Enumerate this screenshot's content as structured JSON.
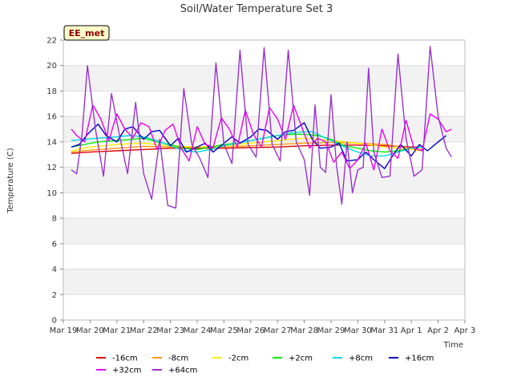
{
  "chart_data": {
    "type": "line",
    "title": "Soil/Water Temperature Set 3",
    "xlabel": "Time",
    "ylabel": "Temperature (C)",
    "ylim": [
      0,
      22
    ],
    "yticks": [
      0,
      2,
      4,
      6,
      8,
      10,
      12,
      14,
      16,
      18,
      20,
      22
    ],
    "xlim": [
      0,
      15
    ],
    "xticks": [
      {
        "value": 0,
        "label": "Mar 19"
      },
      {
        "value": 1,
        "label": "Mar 20"
      },
      {
        "value": 2,
        "label": "Mar 21"
      },
      {
        "value": 3,
        "label": "Mar 22"
      },
      {
        "value": 4,
        "label": "Mar 23"
      },
      {
        "value": 5,
        "label": "Mar 24"
      },
      {
        "value": 6,
        "label": "Mar 25"
      },
      {
        "value": 7,
        "label": "Mar 26"
      },
      {
        "value": 8,
        "label": "Mar 27"
      },
      {
        "value": 9,
        "label": "Mar 28"
      },
      {
        "value": 10,
        "label": "Mar 29"
      },
      {
        "value": 11,
        "label": "Mar 30"
      },
      {
        "value": 12,
        "label": "Mar 31"
      },
      {
        "value": 13,
        "label": "Apr 1"
      },
      {
        "value": 14,
        "label": "Apr 2"
      },
      {
        "value": 15,
        "label": "Apr 3"
      }
    ],
    "grid": true,
    "legend_position": "bottom",
    "site_label": "EE_met",
    "series": [
      {
        "name": "-16cm",
        "color": "#dd0000",
        "x": [
          0.3,
          1,
          2,
          3,
          4,
          5,
          6,
          7,
          8,
          9,
          10,
          11,
          12,
          13,
          13.4
        ],
        "y": [
          13.1,
          13.2,
          13.3,
          13.4,
          13.5,
          13.5,
          13.5,
          13.55,
          13.6,
          13.7,
          13.75,
          13.75,
          13.7,
          13.6,
          13.6
        ]
      },
      {
        "name": "-8cm",
        "color": "#ff9900",
        "x": [
          0.3,
          1,
          2,
          3,
          4,
          5,
          6,
          7,
          8,
          9,
          10,
          11,
          12,
          13,
          13.4
        ],
        "y": [
          13.2,
          13.35,
          13.5,
          13.65,
          13.6,
          13.6,
          13.6,
          13.7,
          13.8,
          13.9,
          13.95,
          13.9,
          13.8,
          13.5,
          13.4
        ]
      },
      {
        "name": "-2cm",
        "color": "#ffee00",
        "x": [
          0.3,
          1,
          2,
          3,
          4,
          5,
          6,
          7,
          8,
          9,
          10,
          11,
          12,
          13,
          13.4
        ],
        "y": [
          13.3,
          13.6,
          13.8,
          13.9,
          13.7,
          13.6,
          13.7,
          13.9,
          14.1,
          14.3,
          14.1,
          13.9,
          13.6,
          13.4,
          13.3
        ]
      },
      {
        "name": "+2cm",
        "color": "#00ee00",
        "x": [
          0.3,
          0.8,
          1.3,
          2,
          2.6,
          3,
          3.5,
          4,
          4.5,
          5,
          5.5,
          6,
          6.5,
          7,
          7.5,
          8,
          8.5,
          9,
          9.5,
          10,
          10.5,
          11,
          11.5,
          12,
          12.5,
          13,
          13.4
        ],
        "y": [
          13.6,
          13.8,
          14.0,
          14.1,
          14.2,
          14.3,
          14.0,
          13.8,
          13.5,
          13.4,
          13.6,
          13.8,
          13.9,
          14.1,
          14.3,
          14.5,
          14.6,
          14.6,
          14.5,
          14.2,
          13.7,
          13.5,
          13.3,
          13.2,
          13.3,
          13.5,
          13.6
        ]
      },
      {
        "name": "+8cm",
        "color": "#00dddd",
        "x": [
          0.3,
          0.8,
          1.3,
          2,
          2.5,
          3,
          3.5,
          4,
          4.5,
          5,
          5.5,
          6,
          6.5,
          7,
          7.5,
          8,
          8.5,
          9,
          9.3,
          9.7,
          10,
          10.5,
          11,
          11.5,
          12,
          12.5,
          13,
          13.4
        ],
        "y": [
          14.1,
          14.2,
          14.3,
          14.4,
          14.5,
          14.4,
          14.1,
          13.7,
          13.3,
          13.2,
          13.4,
          13.7,
          13.9,
          14.1,
          14.3,
          14.5,
          14.7,
          14.8,
          14.8,
          14.4,
          14.1,
          13.6,
          13.2,
          12.9,
          12.9,
          13.2,
          13.5,
          13.6
        ]
      },
      {
        "name": "+16cm",
        "color": "#0000cc",
        "x": [
          0.3,
          0.6,
          0.9,
          1.3,
          1.6,
          2,
          2.3,
          2.6,
          3,
          3.3,
          3.6,
          4,
          4.3,
          4.6,
          5,
          5.3,
          5.6,
          6,
          6.3,
          6.6,
          7,
          7.3,
          7.6,
          8,
          8.3,
          8.6,
          9,
          9.3,
          9.6,
          10,
          10.3,
          10.6,
          11,
          11.3,
          11.6,
          12,
          12.3,
          12.6,
          13,
          13.3,
          13.6,
          14,
          14.3
        ],
        "y": [
          13.6,
          13.8,
          14.6,
          15.4,
          14.5,
          14.0,
          15.0,
          15.2,
          14.2,
          14.8,
          14.9,
          13.7,
          14.3,
          13.2,
          13.6,
          13.9,
          13.2,
          13.9,
          14.4,
          13.9,
          14.4,
          15.0,
          14.9,
          14.2,
          14.8,
          14.9,
          15.5,
          14.2,
          13.5,
          13.6,
          13.9,
          12.5,
          12.6,
          13.2,
          12.6,
          11.9,
          12.9,
          13.8,
          12.9,
          13.8,
          13.3,
          14.0,
          14.5
        ]
      },
      {
        "name": "+32cm",
        "color": "#ee00ee",
        "x": [
          0.3,
          0.5,
          0.8,
          1.1,
          1.4,
          1.7,
          2.0,
          2.3,
          2.6,
          2.9,
          3.2,
          3.5,
          3.8,
          4.1,
          4.4,
          4.7,
          5.0,
          5.3,
          5.6,
          5.9,
          6.2,
          6.5,
          6.8,
          7.1,
          7.4,
          7.7,
          8.0,
          8.3,
          8.6,
          8.9,
          9.2,
          9.5,
          9.8,
          10.1,
          10.4,
          10.7,
          11.0,
          11.3,
          11.6,
          11.9,
          12.2,
          12.5,
          12.8,
          13.1,
          13.4,
          13.7,
          14.0,
          14.3,
          14.5
        ],
        "y": [
          15.0,
          14.5,
          14.0,
          16.9,
          15.8,
          14.1,
          16.2,
          15.0,
          14.3,
          15.5,
          15.2,
          13.4,
          14.9,
          15.4,
          13.5,
          12.5,
          15.2,
          13.8,
          13.6,
          15.9,
          15.0,
          13.6,
          16.5,
          14.6,
          13.6,
          16.7,
          15.8,
          14.2,
          16.9,
          15.2,
          13.5,
          14.3,
          14.0,
          12.4,
          13.2,
          11.9,
          12.6,
          13.9,
          11.8,
          15.0,
          13.3,
          12.7,
          15.7,
          13.5,
          13.3,
          16.2,
          15.8,
          14.8,
          15.0
        ]
      },
      {
        "name": "+64cm",
        "color": "#9933cc",
        "x": [
          0.3,
          0.5,
          0.7,
          0.9,
          1.2,
          1.5,
          1.8,
          2.1,
          2.4,
          2.7,
          3.0,
          3.3,
          3.6,
          3.9,
          4.2,
          4.5,
          4.8,
          5.1,
          5.4,
          5.7,
          6.0,
          6.3,
          6.6,
          6.9,
          7.2,
          7.5,
          7.8,
          8.1,
          8.4,
          8.7,
          9.0,
          9.2,
          9.4,
          9.6,
          9.8,
          10.0,
          10.2,
          10.4,
          10.6,
          10.8,
          11.0,
          11.2,
          11.4,
          11.6,
          11.9,
          12.2,
          12.5,
          12.8,
          13.1,
          13.4,
          13.7,
          14.0,
          14.3,
          14.5
        ],
        "y": [
          11.8,
          11.5,
          14.6,
          20.0,
          15.0,
          11.3,
          17.8,
          14.5,
          11.5,
          17.1,
          11.5,
          9.5,
          14.2,
          9.0,
          8.8,
          18.2,
          13.8,
          12.7,
          11.2,
          20.2,
          13.8,
          12.3,
          21.2,
          13.8,
          12.8,
          21.4,
          13.8,
          12.5,
          21.2,
          14.0,
          12.6,
          9.8,
          16.9,
          12.0,
          11.6,
          17.7,
          12.2,
          9.1,
          14.0,
          10.0,
          11.8,
          12.0,
          19.8,
          13.2,
          11.2,
          11.3,
          20.9,
          14.3,
          11.3,
          11.8,
          21.5,
          16.0,
          13.5,
          12.8
        ]
      }
    ]
  }
}
